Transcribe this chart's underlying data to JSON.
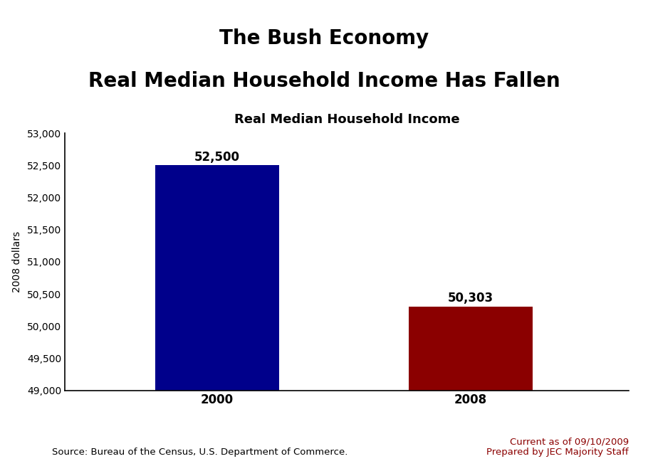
{
  "title_line1": "The Bush Economy",
  "title_line2": "Real Median Household Income Has Fallen",
  "subtitle": "Real Median Household Income",
  "categories": [
    "2000",
    "2008"
  ],
  "values": [
    52500,
    50303
  ],
  "bar_colors": [
    "#00008B",
    "#8B0000"
  ],
  "ylabel": "2008 dollars",
  "ylim": [
    49000,
    53000
  ],
  "ytick_step": 500,
  "bar_positions": [
    0.27,
    0.72
  ],
  "bar_width": 0.22,
  "value_labels": [
    "52,500",
    "50,303"
  ],
  "source_text": "Source: Bureau of the Census, U.S. Department of Commerce.",
  "note_text": "Current as of 09/10/2009\nPrepared by JEC Majority Staff",
  "source_color": "#000000",
  "note_color": "#8B0000",
  "title_fontsize": 20,
  "subtitle_fontsize": 13,
  "label_fontsize": 12,
  "ylabel_fontsize": 10,
  "tick_fontsize": 10,
  "value_label_fontsize": 12,
  "background_color": "#FFFFFF"
}
